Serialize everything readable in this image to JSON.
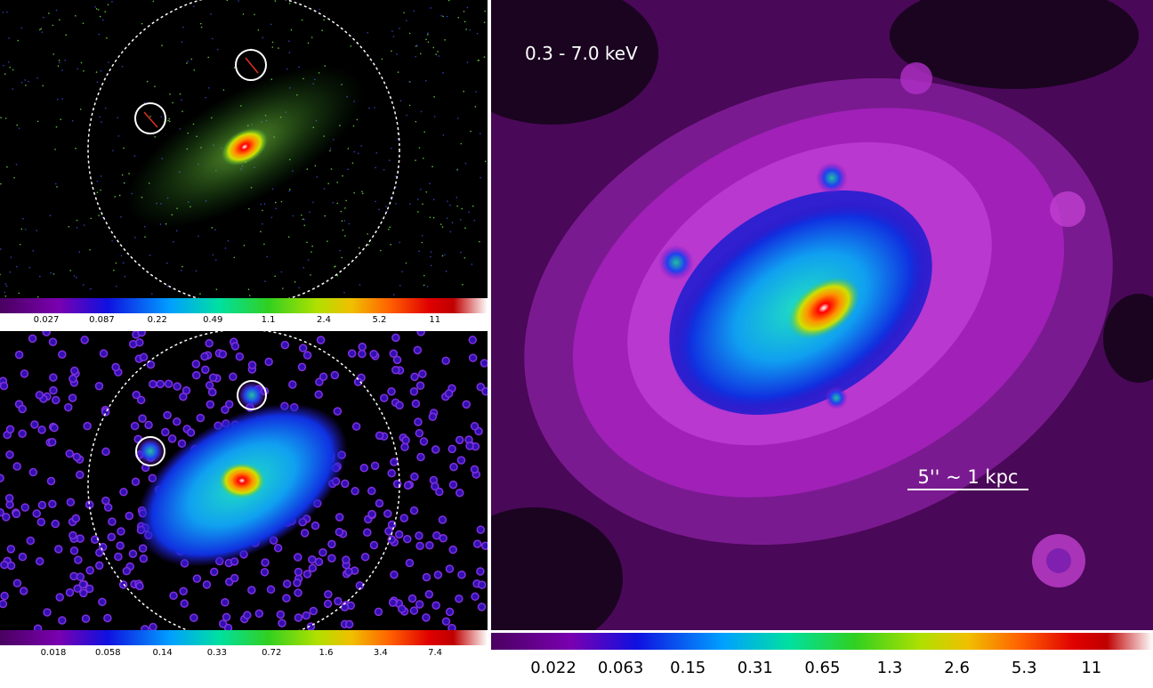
{
  "panels": [
    {
      "colorbar": {
        "ticks": [
          "0.027",
          "0.087",
          "0.22",
          "0.49",
          "1.1",
          "2.4",
          "5.2",
          "11"
        ]
      }
    },
    {
      "colorbar": {
        "ticks": [
          "0.018",
          "0.058",
          "0.14",
          "0.33",
          "0.72",
          "1.6",
          "3.4",
          "7.4"
        ]
      }
    },
    {
      "label": "0.3 - 7.0 keV",
      "scale_bar": "5'' ~ 1 kpc",
      "colorbar": {
        "ticks": [
          "0.022",
          "0.063",
          "0.15",
          "0.31",
          "0.65",
          "1.3",
          "2.6",
          "5.3",
          "11"
        ]
      }
    }
  ]
}
